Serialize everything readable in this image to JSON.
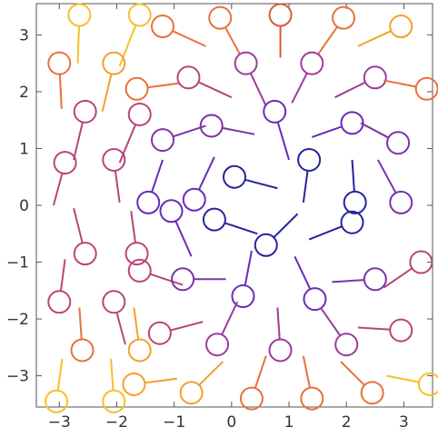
{
  "chart_data": {
    "type": "scatter",
    "xlim": [
      -3.4,
      3.5
    ],
    "ylim": [
      -3.55,
      3.55
    ],
    "x_ticks": [
      -3,
      -2,
      -1,
      0,
      1,
      2,
      3
    ],
    "x_tick_labels": [
      "−3",
      "−2",
      "−1",
      "0",
      "1",
      "2",
      "3"
    ],
    "y_ticks": [
      -3,
      -2,
      -1,
      0,
      1,
      2,
      3
    ],
    "y_tick_labels": [
      "−3",
      "−2",
      "−1",
      "0",
      "1",
      "2",
      "3"
    ],
    "grid": false,
    "legend": "none",
    "frame": "box",
    "marks": [
      {
        "x": -2.65,
        "y": 3.35,
        "dx": -0.03,
        "dy": -0.85,
        "color": "#f5c02a"
      },
      {
        "x": -1.6,
        "y": 3.35,
        "dx": -0.35,
        "dy": -0.9,
        "color": "#f5c02a"
      },
      {
        "x": -3.0,
        "y": 2.5,
        "dx": 0.04,
        "dy": -0.8,
        "color": "#e8713a"
      },
      {
        "x": -2.05,
        "y": 2.5,
        "dx": -0.2,
        "dy": -0.85,
        "color": "#f2a12a"
      },
      {
        "x": -1.2,
        "y": 3.15,
        "dx": 0.75,
        "dy": -0.35,
        "color": "#e8713a"
      },
      {
        "x": -0.2,
        "y": 3.3,
        "dx": 0.35,
        "dy": -0.65,
        "color": "#e8713a"
      },
      {
        "x": 0.85,
        "y": 3.35,
        "dx": 0.0,
        "dy": -0.75,
        "color": "#d95a3a"
      },
      {
        "x": 1.95,
        "y": 3.3,
        "dx": -0.45,
        "dy": -0.65,
        "color": "#e8713a"
      },
      {
        "x": 2.95,
        "y": 3.15,
        "dx": -0.75,
        "dy": -0.35,
        "color": "#f2a12a"
      },
      {
        "x": -1.65,
        "y": 2.05,
        "dx": 0.75,
        "dy": 0.1,
        "color": "#e8713a"
      },
      {
        "x": -0.75,
        "y": 2.25,
        "dx": 0.75,
        "dy": -0.35,
        "color": "#b8457a"
      },
      {
        "x": 0.25,
        "y": 2.5,
        "dx": 0.35,
        "dy": -0.75,
        "color": "#9c3c9c"
      },
      {
        "x": 1.4,
        "y": 2.5,
        "dx": -0.35,
        "dy": -0.7,
        "color": "#9c3c9c"
      },
      {
        "x": 2.5,
        "y": 2.25,
        "dx": -0.7,
        "dy": -0.35,
        "color": "#9c3c9c"
      },
      {
        "x": 3.4,
        "y": 2.05,
        "dx": -0.75,
        "dy": 0.15,
        "color": "#e8713a"
      },
      {
        "x": -2.55,
        "y": 1.65,
        "dx": -0.2,
        "dy": -0.85,
        "color": "#b8457a"
      },
      {
        "x": -1.6,
        "y": 1.6,
        "dx": -0.35,
        "dy": -0.85,
        "color": "#b8457a"
      },
      {
        "x": -1.2,
        "y": 1.15,
        "dx": 0.75,
        "dy": 0.25,
        "color": "#7a33a8"
      },
      {
        "x": -0.35,
        "y": 1.4,
        "dx": 0.75,
        "dy": -0.15,
        "color": "#7a33a8"
      },
      {
        "x": 0.75,
        "y": 1.65,
        "dx": 0.25,
        "dy": -0.85,
        "color": "#6a2bb8"
      },
      {
        "x": 2.1,
        "y": 1.45,
        "dx": -0.7,
        "dy": -0.25,
        "color": "#6a2bb8"
      },
      {
        "x": 2.9,
        "y": 1.1,
        "dx": -0.65,
        "dy": 0.35,
        "color": "#7a33a8"
      },
      {
        "x": -2.9,
        "y": 0.75,
        "dx": -0.2,
        "dy": -0.75,
        "color": "#b8457a"
      },
      {
        "x": -2.05,
        "y": 0.8,
        "dx": 0.1,
        "dy": -0.75,
        "color": "#b8457a"
      },
      {
        "x": 0.05,
        "y": 0.5,
        "dx": 0.75,
        "dy": -0.2,
        "color": "#27259c"
      },
      {
        "x": 1.35,
        "y": 0.8,
        "dx": -0.1,
        "dy": -0.75,
        "color": "#27259c"
      },
      {
        "x": -1.45,
        "y": 0.05,
        "dx": 0.25,
        "dy": 0.75,
        "color": "#6a2bb8"
      },
      {
        "x": -1.05,
        "y": -0.1,
        "dx": 0.35,
        "dy": -0.8,
        "color": "#6a2bb8"
      },
      {
        "x": -0.65,
        "y": 0.1,
        "dx": 0.35,
        "dy": 0.75,
        "color": "#6a2bb8"
      },
      {
        "x": -0.3,
        "y": -0.25,
        "dx": 0.75,
        "dy": -0.25,
        "color": "#27259c"
      },
      {
        "x": 2.15,
        "y": 0.05,
        "dx": -0.05,
        "dy": 0.75,
        "color": "#27259c"
      },
      {
        "x": 2.1,
        "y": -0.3,
        "dx": -0.75,
        "dy": -0.3,
        "color": "#27259c"
      },
      {
        "x": 2.95,
        "y": 0.05,
        "dx": -0.4,
        "dy": 0.75,
        "color": "#7a33a8"
      },
      {
        "x": 0.6,
        "y": -0.7,
        "dx": 0.55,
        "dy": 0.55,
        "color": "#27259c"
      },
      {
        "x": -2.55,
        "y": -0.85,
        "dx": -0.2,
        "dy": 0.8,
        "color": "#b8457a"
      },
      {
        "x": -1.65,
        "y": -0.85,
        "dx": -0.1,
        "dy": 0.75,
        "color": "#b8457a"
      },
      {
        "x": -1.6,
        "y": -1.15,
        "dx": 0.75,
        "dy": -0.25,
        "color": "#b8457a"
      },
      {
        "x": -0.85,
        "y": -1.3,
        "dx": 0.75,
        "dy": 0.0,
        "color": "#7a33a8"
      },
      {
        "x": 0.2,
        "y": -1.6,
        "dx": 0.15,
        "dy": 0.8,
        "color": "#6a2bb8"
      },
      {
        "x": 1.45,
        "y": -1.65,
        "dx": -0.35,
        "dy": 0.75,
        "color": "#6a2bb8"
      },
      {
        "x": 2.5,
        "y": -1.3,
        "dx": -0.75,
        "dy": -0.05,
        "color": "#7a33a8"
      },
      {
        "x": 3.3,
        "y": -1.0,
        "dx": -0.65,
        "dy": -0.45,
        "color": "#b8457a"
      },
      {
        "x": -3.0,
        "y": -1.7,
        "dx": 0.1,
        "dy": 0.75,
        "color": "#b8457a"
      },
      {
        "x": -2.05,
        "y": -1.7,
        "dx": 0.2,
        "dy": -0.75,
        "color": "#b8457a"
      },
      {
        "x": -1.25,
        "y": -2.25,
        "dx": 0.75,
        "dy": 0.2,
        "color": "#b8457a"
      },
      {
        "x": -0.25,
        "y": -2.45,
        "dx": 0.35,
        "dy": 0.75,
        "color": "#9c3c9c"
      },
      {
        "x": 0.85,
        "y": -2.55,
        "dx": -0.05,
        "dy": 0.75,
        "color": "#9c3c9c"
      },
      {
        "x": 2.0,
        "y": -2.45,
        "dx": -0.45,
        "dy": 0.65,
        "color": "#9c3c9c"
      },
      {
        "x": 2.95,
        "y": -2.2,
        "dx": -0.75,
        "dy": 0.05,
        "color": "#b8457a"
      },
      {
        "x": -2.6,
        "y": -2.55,
        "dx": -0.05,
        "dy": 0.75,
        "color": "#e8713a"
      },
      {
        "x": -1.6,
        "y": -2.55,
        "dx": -0.1,
        "dy": 0.75,
        "color": "#f2a12a"
      },
      {
        "x": -1.7,
        "y": -3.15,
        "dx": 0.75,
        "dy": 0.1,
        "color": "#f2a12a"
      },
      {
        "x": -0.7,
        "y": -3.3,
        "dx": 0.55,
        "dy": 0.55,
        "color": "#f2a12a"
      },
      {
        "x": 0.35,
        "y": -3.4,
        "dx": 0.25,
        "dy": 0.75,
        "color": "#e8713a"
      },
      {
        "x": 1.4,
        "y": -3.4,
        "dx": -0.15,
        "dy": 0.75,
        "color": "#e8713a"
      },
      {
        "x": 2.45,
        "y": -3.3,
        "dx": -0.55,
        "dy": 0.55,
        "color": "#e8713a"
      },
      {
        "x": 3.45,
        "y": -3.15,
        "dx": -0.75,
        "dy": 0.15,
        "color": "#f5c02a"
      },
      {
        "x": -3.05,
        "y": -3.45,
        "dx": 0.1,
        "dy": 0.75,
        "color": "#f5c02a"
      },
      {
        "x": -2.05,
        "y": -3.45,
        "dx": -0.05,
        "dy": 0.75,
        "color": "#f5c02a"
      }
    ]
  }
}
